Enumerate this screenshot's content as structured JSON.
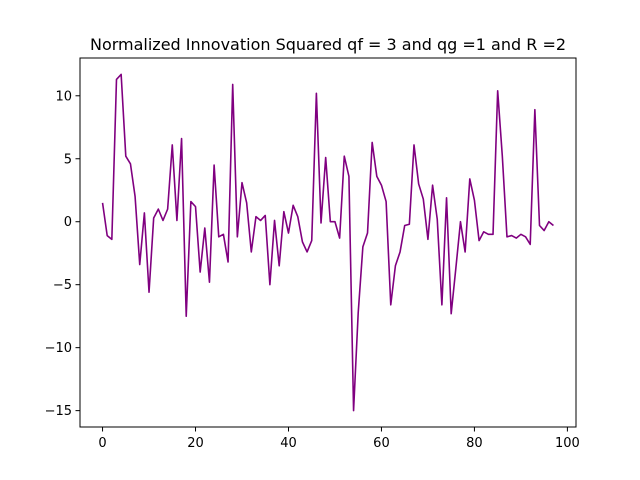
{
  "chart_data": {
    "type": "line",
    "title": "Normalized Innovation Squared qf = 3 and qg =1 and  R =2",
    "xlabel": "",
    "ylabel": "",
    "xlim": [
      -4.85,
      101.85
    ],
    "ylim": [
      -16.3,
      13.0
    ],
    "xticks": [
      0,
      20,
      40,
      60,
      80,
      100
    ],
    "yticks": [
      -15,
      -10,
      -5,
      0,
      5,
      10
    ],
    "grid": false,
    "line_color": "#800080",
    "series": [
      {
        "x": [
          0,
          1,
          2,
          3,
          4,
          5,
          6,
          7,
          8,
          9,
          10,
          11,
          12,
          13,
          14,
          15,
          16,
          17,
          18,
          19,
          20,
          21,
          22,
          23,
          24,
          25,
          26,
          27,
          28,
          29,
          30,
          31,
          32,
          33,
          34,
          35,
          36,
          37,
          38,
          39,
          40,
          41,
          42,
          43,
          44,
          45,
          46,
          47,
          48,
          49,
          50,
          51,
          52,
          53,
          54,
          55,
          56,
          57,
          58,
          59,
          60,
          61,
          62,
          63,
          64,
          65,
          66,
          67,
          68,
          69,
          70,
          71,
          72,
          73,
          74,
          75,
          76,
          77,
          78,
          79,
          80,
          81,
          82,
          83,
          84,
          85,
          86,
          87,
          88,
          89,
          90,
          91,
          92,
          93,
          94,
          95,
          96,
          97
        ],
        "values": [
          1.5,
          -1.1,
          -1.4,
          11.3,
          11.7,
          5.2,
          4.6,
          2.0,
          -3.4,
          0.7,
          -5.6,
          0.3,
          1.0,
          0.1,
          1.0,
          6.1,
          0.1,
          6.6,
          -7.5,
          1.6,
          1.2,
          -4.0,
          -0.5,
          -4.8,
          4.5,
          -1.2,
          -1.0,
          -3.2,
          10.9,
          -1.2,
          3.1,
          1.5,
          -2.4,
          0.4,
          0.1,
          0.5,
          -5.0,
          0.1,
          -3.5,
          0.8,
          -0.9,
          1.3,
          0.4,
          -1.6,
          -2.4,
          -1.5,
          10.2,
          -0.1,
          5.1,
          0.0,
          0.0,
          -1.3,
          5.2,
          3.6,
          -15.0,
          -7.2,
          -2.0,
          -0.9,
          6.3,
          3.6,
          2.9,
          1.6,
          -6.6,
          -3.5,
          -2.4,
          -0.3,
          -0.2,
          6.1,
          3.0,
          1.8,
          -1.4,
          2.9,
          0.2,
          -6.6,
          1.9,
          -7.3,
          -3.7,
          0.0,
          -2.4,
          3.4,
          1.7,
          -1.5,
          -0.8,
          -1.0,
          -1.0,
          10.4,
          5.2,
          -1.2,
          -1.1,
          -1.3,
          -1.0,
          -1.2,
          -1.8,
          8.9,
          -0.3,
          -0.7,
          0.0,
          -0.3
        ]
      }
    ]
  }
}
